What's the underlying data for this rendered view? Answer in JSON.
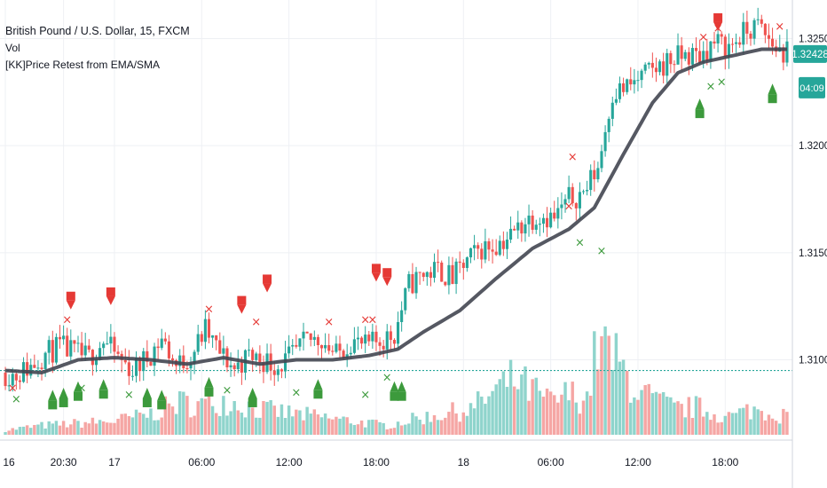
{
  "legend": {
    "symbol": "British Pound / U.S. Dollar, 15, FXCM",
    "volume": "Vol",
    "indicator": "[KK]Price Retest from EMA/SMA"
  },
  "price_axis": {
    "last_price": "1.32428",
    "countdown": "04:09",
    "horizontal_level": 1.3095
  },
  "colors": {
    "up": "#26a69a",
    "down": "#ef5350",
    "ema": "#434651",
    "vol_up": "#8fd4cc",
    "vol_down": "#f5a6a4",
    "signal_up": "#3c9a3c",
    "signal_down": "#e53935",
    "grid": "#eef0f4",
    "axis_text": "#131722"
  },
  "chart_data": {
    "type": "candlestick",
    "symbol": "British Pound / U.S. Dollar",
    "interval": "15",
    "source": "FXCM",
    "price_axis": {
      "ticks": [
        1.31,
        1.315,
        1.32,
        1.325
      ],
      "tick_labels": [
        "1.31000",
        "1.31500",
        "1.32000",
        "1.32500"
      ],
      "range": [
        1.3065,
        1.3268
      ]
    },
    "time_axis": {
      "labels": [
        "16",
        "20:30",
        "17",
        "06:00",
        "12:00",
        "18:00",
        "18",
        "06:00",
        "12:00",
        "18:00"
      ],
      "bar_index": [
        0,
        16,
        30,
        54,
        78,
        102,
        126,
        150,
        174,
        198
      ]
    },
    "grid": true,
    "price_anchors": [
      [
        0,
        1.3094
      ],
      [
        4,
        1.3093
      ],
      [
        8,
        1.3097
      ],
      [
        12,
        1.3103
      ],
      [
        16,
        1.3106
      ],
      [
        20,
        1.3103
      ],
      [
        24,
        1.3101
      ],
      [
        28,
        1.3109
      ],
      [
        32,
        1.3101
      ],
      [
        36,
        1.3095
      ],
      [
        40,
        1.3101
      ],
      [
        44,
        1.311
      ],
      [
        48,
        1.3097
      ],
      [
        52,
        1.3102
      ],
      [
        56,
        1.3114
      ],
      [
        60,
        1.3103
      ],
      [
        64,
        1.3096
      ],
      [
        68,
        1.3102
      ],
      [
        72,
        1.31
      ],
      [
        76,
        1.3097
      ],
      [
        80,
        1.3102
      ],
      [
        84,
        1.3109
      ],
      [
        88,
        1.311
      ],
      [
        92,
        1.3102
      ],
      [
        96,
        1.3109
      ],
      [
        100,
        1.3106
      ],
      [
        104,
        1.3109
      ],
      [
        108,
        1.3112
      ],
      [
        112,
        1.3135
      ],
      [
        116,
        1.314
      ],
      [
        120,
        1.3142
      ],
      [
        124,
        1.3138
      ],
      [
        128,
        1.3146
      ],
      [
        132,
        1.3152
      ],
      [
        136,
        1.3154
      ],
      [
        140,
        1.3158
      ],
      [
        144,
        1.3165
      ],
      [
        148,
        1.3168
      ],
      [
        152,
        1.3166
      ],
      [
        156,
        1.3175
      ],
      [
        160,
        1.3178
      ],
      [
        164,
        1.319
      ],
      [
        168,
        1.3225
      ],
      [
        172,
        1.3227
      ],
      [
        176,
        1.3232
      ],
      [
        180,
        1.3236
      ],
      [
        184,
        1.324
      ],
      [
        188,
        1.3242
      ],
      [
        192,
        1.3242
      ],
      [
        196,
        1.3248
      ],
      [
        200,
        1.3246
      ],
      [
        204,
        1.3252
      ],
      [
        208,
        1.3256
      ],
      [
        212,
        1.3247
      ],
      [
        215,
        1.3243
      ]
    ],
    "ema_anchors": [
      [
        0,
        1.3095
      ],
      [
        10,
        1.3094
      ],
      [
        20,
        1.31
      ],
      [
        30,
        1.3101
      ],
      [
        40,
        1.31
      ],
      [
        50,
        1.3098
      ],
      [
        60,
        1.3101
      ],
      [
        70,
        1.3098
      ],
      [
        80,
        1.31
      ],
      [
        90,
        1.31
      ],
      [
        100,
        1.3102
      ],
      [
        108,
        1.3105
      ],
      [
        115,
        1.3113
      ],
      [
        125,
        1.3123
      ],
      [
        135,
        1.3138
      ],
      [
        145,
        1.3152
      ],
      [
        155,
        1.3161
      ],
      [
        162,
        1.3171
      ],
      [
        170,
        1.3196
      ],
      [
        178,
        1.322
      ],
      [
        185,
        1.3234
      ],
      [
        192,
        1.3239
      ],
      [
        200,
        1.3242
      ],
      [
        208,
        1.3245
      ],
      [
        215,
        1.3245
      ]
    ],
    "signals": {
      "red_flags": [
        [
          18,
          1.3126
        ],
        [
          29,
          1.3128
        ],
        [
          65,
          1.3124
        ],
        [
          72,
          1.3134
        ],
        [
          102,
          1.3139
        ],
        [
          105,
          1.3137
        ],
        [
          196,
          1.3256
        ]
      ],
      "green_flags": [
        [
          13,
          1.3081
        ],
        [
          16,
          1.3082
        ],
        [
          20,
          1.3085
        ],
        [
          27,
          1.3086
        ],
        [
          39,
          1.3082
        ],
        [
          43,
          1.3081
        ],
        [
          56,
          1.3087
        ],
        [
          68,
          1.3082
        ],
        [
          86,
          1.3086
        ],
        [
          107,
          1.3085
        ],
        [
          109,
          1.3085
        ],
        [
          191,
          1.3217
        ],
        [
          211,
          1.3224
        ]
      ],
      "red_x": [
        [
          2,
          1.3085
        ],
        [
          17,
          1.3117
        ],
        [
          56,
          1.3122
        ],
        [
          69,
          1.3116
        ],
        [
          89,
          1.3116
        ],
        [
          99,
          1.3117
        ],
        [
          101,
          1.3117
        ],
        [
          155,
          1.317
        ],
        [
          156,
          1.3193
        ],
        [
          192,
          1.3249
        ],
        [
          196,
          1.3253
        ],
        [
          213,
          1.3254
        ]
      ],
      "green_x": [
        [
          3,
          1.308
        ],
        [
          21,
          1.3085
        ],
        [
          34,
          1.3082
        ],
        [
          61,
          1.3084
        ],
        [
          80,
          1.3083
        ],
        [
          99,
          1.3082
        ],
        [
          105,
          1.309
        ],
        [
          164,
          1.3149
        ],
        [
          158,
          1.3153
        ],
        [
          194,
          1.3226
        ],
        [
          197,
          1.3228
        ]
      ]
    },
    "volume_axis_note": "Volume bars drawn from bottom of pane; values relative",
    "volume_profile": [
      [
        0,
        4
      ],
      [
        10,
        8
      ],
      [
        20,
        10
      ],
      [
        30,
        12
      ],
      [
        40,
        18
      ],
      [
        48,
        28
      ],
      [
        54,
        26
      ],
      [
        60,
        30
      ],
      [
        70,
        22
      ],
      [
        80,
        18
      ],
      [
        90,
        14
      ],
      [
        100,
        10
      ],
      [
        105,
        8
      ],
      [
        110,
        12
      ],
      [
        120,
        18
      ],
      [
        128,
        22
      ],
      [
        135,
        38
      ],
      [
        140,
        48
      ],
      [
        145,
        38
      ],
      [
        150,
        28
      ],
      [
        155,
        35
      ],
      [
        160,
        32
      ],
      [
        163,
        80
      ],
      [
        166,
        70
      ],
      [
        170,
        55
      ],
      [
        175,
        35
      ],
      [
        180,
        28
      ],
      [
        185,
        22
      ],
      [
        190,
        24
      ],
      [
        195,
        18
      ],
      [
        200,
        16
      ],
      [
        205,
        22
      ],
      [
        210,
        20
      ],
      [
        215,
        16
      ]
    ]
  }
}
